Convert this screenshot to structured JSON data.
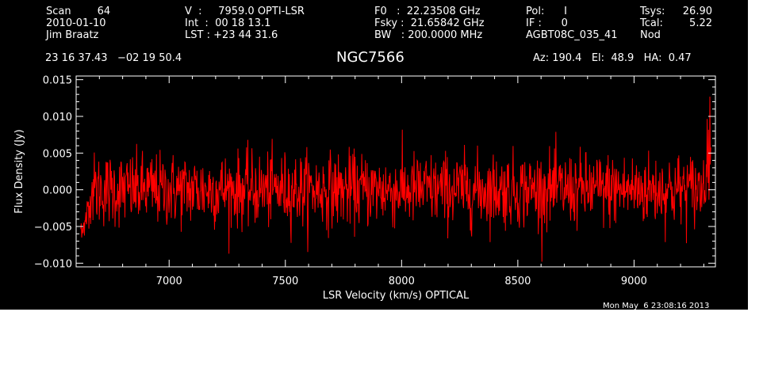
{
  "header": {
    "col1": [
      "Scan        64",
      "2010-01-10",
      "Jim Braatz"
    ],
    "col2": [
      "V  :     7959.0 OPTI-LSR",
      "Int  :  00 18 13.1",
      "LST : +23 44 31.6"
    ],
    "col3": [
      "F0   :  22.23508 GHz",
      "Fsky :  21.65842 GHz",
      "BW   : 200.0000 MHz"
    ],
    "col4": [
      "Pol:      I",
      "IF :      0",
      "AGBT08C_035_41"
    ],
    "col5": [
      "Tsys:",
      "Tcal:",
      "Nod"
    ],
    "col6": [
      "26.90",
      "5.22",
      ""
    ],
    "coords": "23 16 37.43   −02 19 50.4",
    "source": "NGC7566",
    "azel": "Az: 190.4   El:  48.9   HA:  0.47",
    "timestamp": "Mon May  6 23:08:16 2013"
  },
  "chart_data": {
    "type": "line",
    "xlabel": "LSR Velocity (km/s) OPTICAL",
    "ylabel": "Flux Density (Jy)",
    "xlim": [
      6600,
      9350
    ],
    "ylim": [
      -0.0105,
      0.0155
    ],
    "x_ticks": [
      7000,
      7500,
      8000,
      8500,
      9000
    ],
    "y_ticks": [
      -0.01,
      -0.005,
      0.0,
      0.005,
      0.01,
      0.015
    ],
    "y_tick_labels": [
      "−0.010",
      "−0.005",
      "0.000",
      "0.005",
      "0.010",
      "0.015"
    ],
    "series": [
      {
        "color": "#ff0000",
        "x_start": 6620,
        "x_end": 9330,
        "n_points": 1400,
        "noise_rms_jy": 0.0025,
        "edge_features": [
          {
            "x": 6625,
            "y_min": -0.0095,
            "y_max": -0.006
          },
          {
            "x": 9320,
            "y_max": 0.0127
          }
        ]
      }
    ],
    "colors": {
      "background": "#000000",
      "axes": "#ffffff",
      "trace": "#ff0000"
    }
  }
}
